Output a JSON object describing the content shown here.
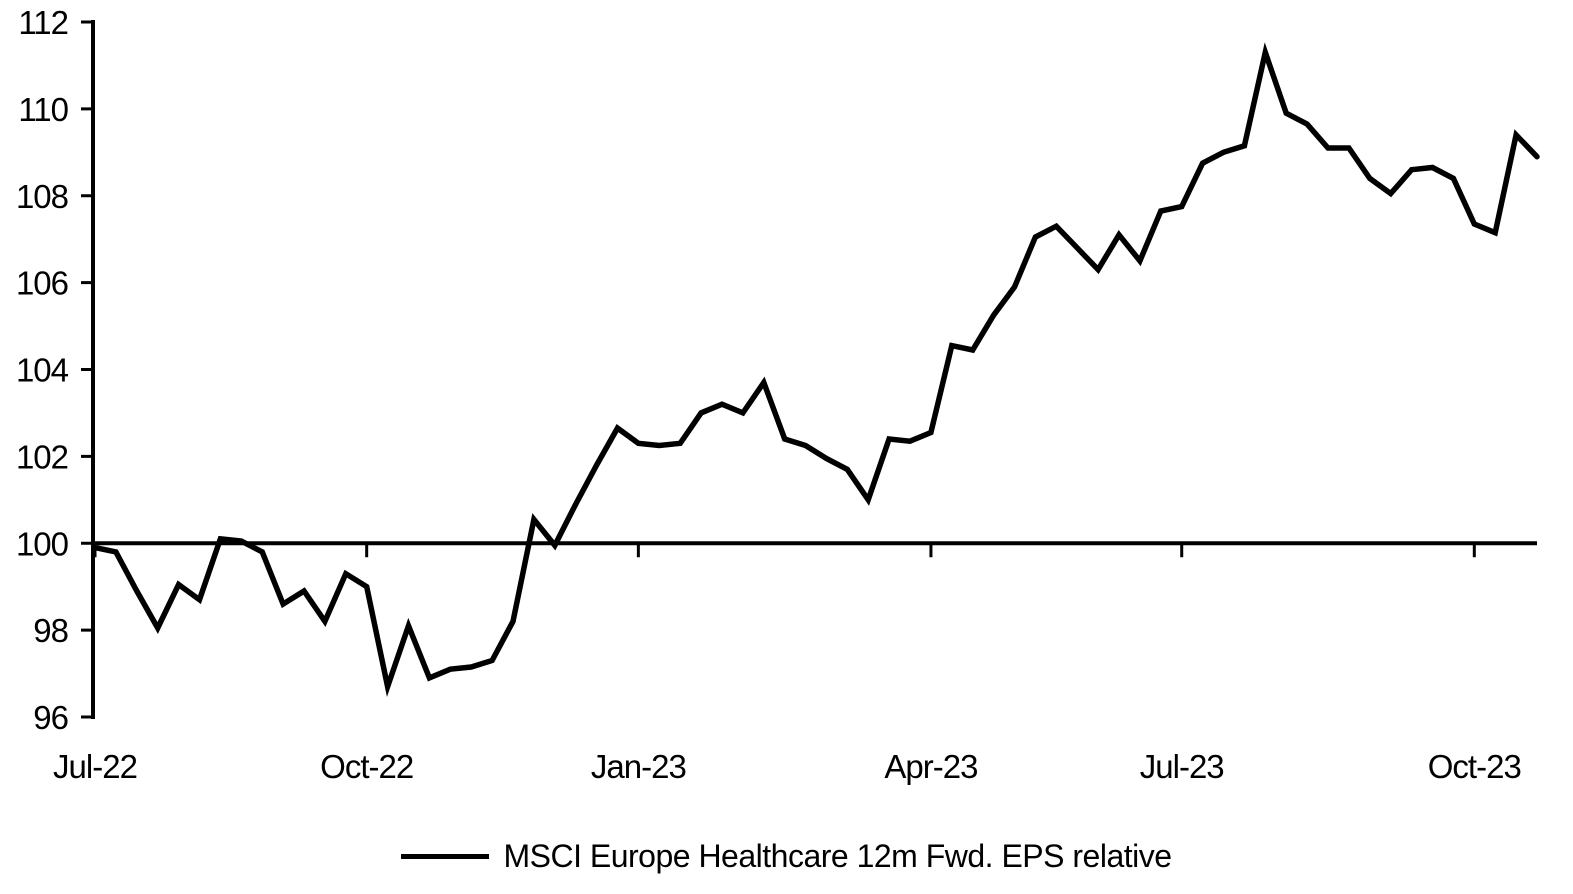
{
  "page": {
    "background": "#ffffff",
    "foreground": "#000000"
  },
  "legend": {
    "swatch_color": "#000000"
  },
  "chart_data": {
    "type": "line",
    "title": "",
    "xlabel": "",
    "ylabel": "",
    "ylim": [
      96,
      112
    ],
    "y_ticks": [
      96,
      98,
      100,
      102,
      104,
      106,
      108,
      110,
      112
    ],
    "baseline_value": 100,
    "grid": false,
    "legend_position": "bottom",
    "frequency": "weekly",
    "x_tick_labels": [
      "Jul-22",
      "Oct-22",
      "Jan-23",
      "Apr-23",
      "Jul-23",
      "Oct-23"
    ],
    "x_tick_indices": [
      0,
      13,
      26,
      40,
      52,
      66
    ],
    "series": [
      {
        "name": "MSCI Europe Healthcare 12m Fwd. EPS relative",
        "color": "#000000",
        "values": [
          99.9,
          99.8,
          98.9,
          98.05,
          99.05,
          98.7,
          100.1,
          100.05,
          99.8,
          98.6,
          98.9,
          98.2,
          99.3,
          99.0,
          96.7,
          98.1,
          96.9,
          97.1,
          97.15,
          97.3,
          98.2,
          100.55,
          99.95,
          100.9,
          101.8,
          102.65,
          102.3,
          102.25,
          102.3,
          103.0,
          103.2,
          103.0,
          103.7,
          102.4,
          102.25,
          101.95,
          101.7,
          101.0,
          102.4,
          102.35,
          102.55,
          104.55,
          104.45,
          105.25,
          105.9,
          107.05,
          107.3,
          106.8,
          106.3,
          107.1,
          106.5,
          107.65,
          107.75,
          108.75,
          109.0,
          109.15,
          111.3,
          109.9,
          109.65,
          109.1,
          109.1,
          108.4,
          108.05,
          108.6,
          108.65,
          108.4,
          107.35,
          107.15,
          109.4,
          108.9
        ]
      }
    ]
  }
}
